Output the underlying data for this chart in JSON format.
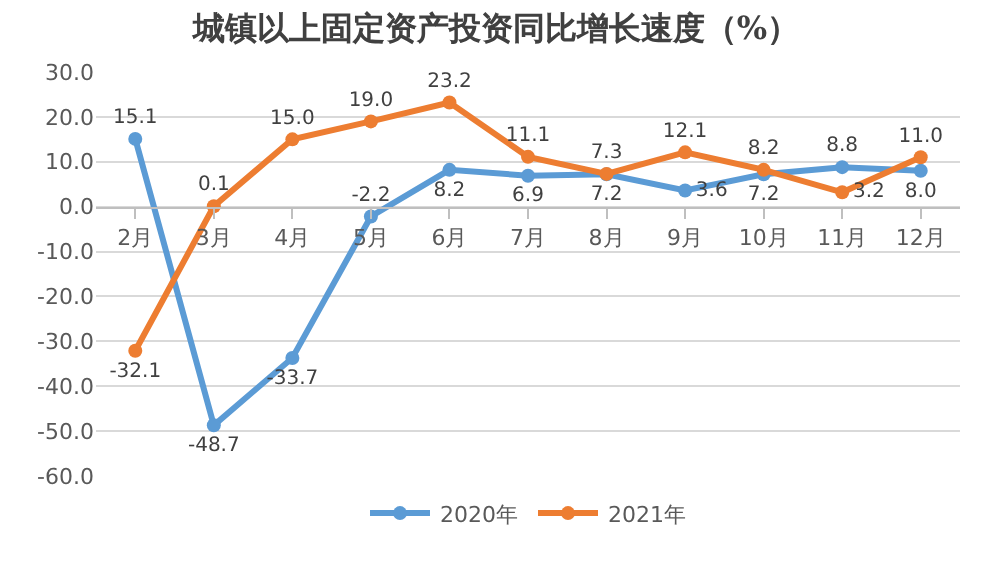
{
  "chart_data": {
    "type": "line",
    "title": "城镇以上固定资产投资同比增长速度（%）",
    "categories": [
      "2月",
      "3月",
      "4月",
      "5月",
      "6月",
      "7月",
      "8月",
      "9月",
      "10月",
      "11月",
      "12月"
    ],
    "series": [
      {
        "name": "2020年",
        "color": "#5b9bd5",
        "values": [
          15.1,
          -48.7,
          -33.7,
          -2.2,
          8.2,
          6.9,
          7.2,
          3.6,
          7.2,
          8.8,
          8.0
        ],
        "value_labels": [
          "15.1",
          "-48.7",
          "-33.7",
          "-2.2",
          "8.2",
          "6.9",
          "7.2",
          "3.6",
          "7.2",
          "8.8",
          "8.0"
        ]
      },
      {
        "name": "2021年",
        "color": "#ed7d31",
        "values": [
          -32.1,
          0.1,
          15.0,
          19.0,
          23.2,
          11.1,
          7.3,
          12.1,
          8.2,
          3.2,
          11.0
        ],
        "value_labels": [
          "-32.1",
          "0.1",
          "15.0",
          "19.0",
          "23.2",
          "11.1",
          "7.3",
          "12.1",
          "8.2",
          "3.2",
          "11.0"
        ]
      }
    ],
    "ylim": [
      -60,
      30
    ],
    "yticks": [
      {
        "value": 30,
        "label": "30.0"
      },
      {
        "value": 20,
        "label": "20.0"
      },
      {
        "value": 10,
        "label": "10.0"
      },
      {
        "value": 0,
        "label": "0.0"
      },
      {
        "value": -10,
        "label": "-10.0"
      },
      {
        "value": -20,
        "label": "-20.0"
      },
      {
        "value": -30,
        "label": "-30.0"
      },
      {
        "value": -40,
        "label": "-40.0"
      },
      {
        "value": -50,
        "label": "-50.0"
      },
      {
        "value": -60,
        "label": "-60.0"
      }
    ],
    "grid": "y",
    "legend": "bottom",
    "marker": "circle",
    "line_style": "solid"
  }
}
